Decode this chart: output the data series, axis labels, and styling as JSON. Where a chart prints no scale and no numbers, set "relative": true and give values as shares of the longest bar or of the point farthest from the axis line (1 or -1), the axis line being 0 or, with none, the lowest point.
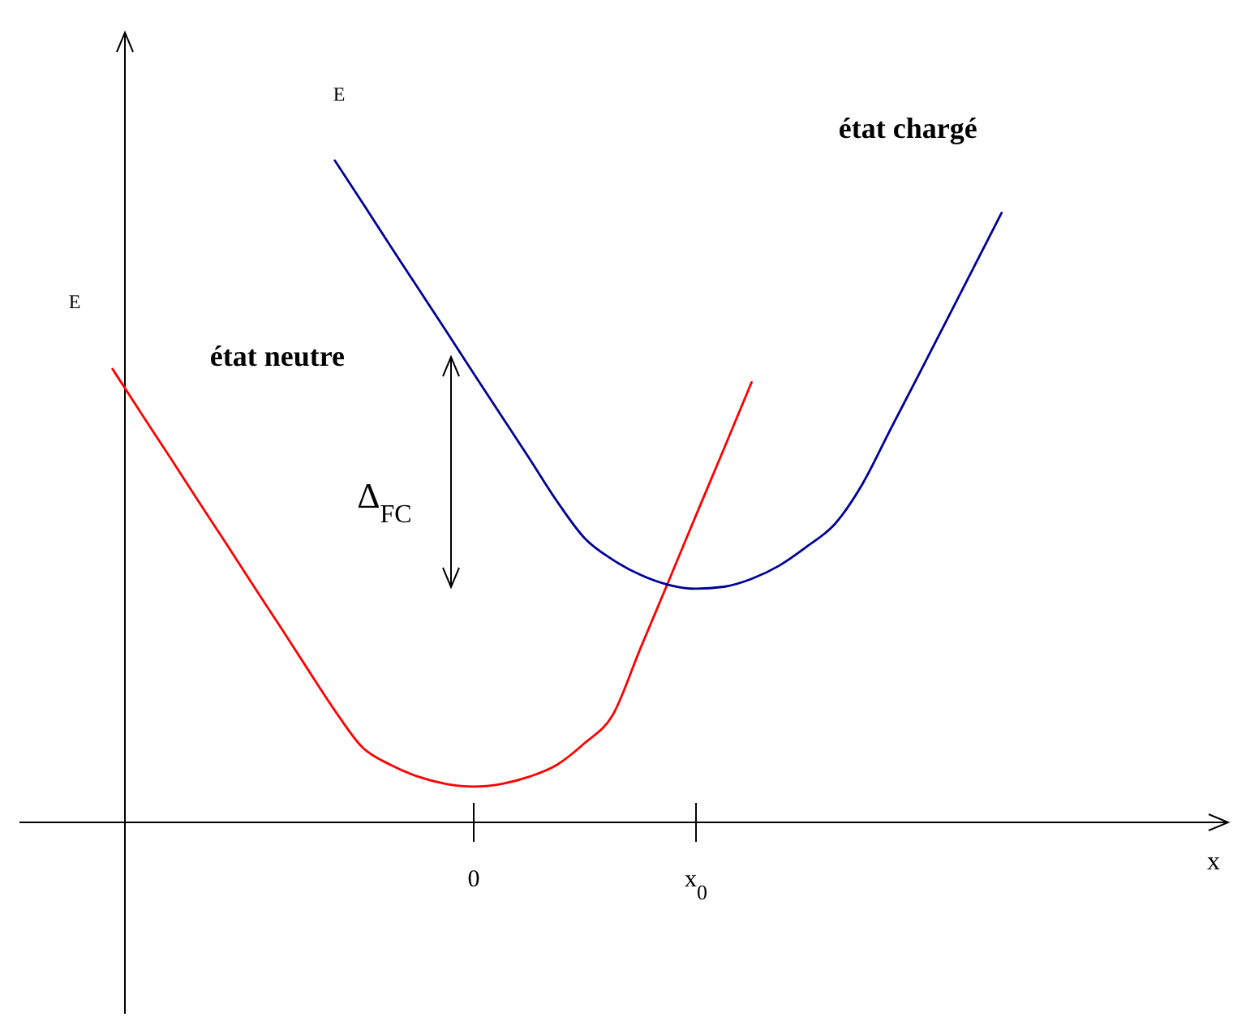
{
  "chart_data": {
    "type": "line",
    "relative": true,
    "xlabel": "x",
    "categories": [
      null,
      null,
      null,
      null,
      null,
      null,
      null,
      null,
      null,
      null,
      null,
      null,
      null,
      null,
      null,
      null,
      "0",
      null,
      null,
      null,
      null,
      null,
      null,
      null,
      "x$_{0}$",
      null,
      null,
      null,
      null,
      null,
      null,
      null,
      null,
      null,
      null,
      null,
      null,
      null,
      null,
      null,
      null,
      null,
      null,
      null
    ],
    "marker": "none",
    "line_style": "solid",
    "annotations": [
      "E",
      "E",
      "Δ$_{FC}$"
    ],
    "series": [
      {
        "name": "état neutre",
        "color": "#ff0000",
        "values": [
          null,
          null,
          null,
          0.685,
          0.62,
          0.556,
          0.491,
          0.427,
          0.362,
          0.298,
          0.233,
          0.169,
          0.113,
          0.087,
          0.069,
          0.058,
          0.054,
          0.058,
          0.069,
          0.087,
          0.12,
          0.162,
          0.263,
          0.363,
          0.464,
          0.564,
          0.665,
          null,
          null,
          null,
          null,
          null,
          null,
          null,
          null,
          null,
          null,
          null,
          null,
          null,
          null,
          null,
          null,
          null
        ]
      },
      {
        "name": "état chargé",
        "color": "#000099",
        "values": [
          null,
          null,
          null,
          null,
          null,
          null,
          null,
          null,
          null,
          null,
          null,
          1,
          0.936,
          0.871,
          0.807,
          0.743,
          0.678,
          0.614,
          0.55,
          0.485,
          0.429,
          0.397,
          0.374,
          0.359,
          0.353,
          0.356,
          0.368,
          0.388,
          0.417,
          0.451,
          0.512,
          0.594,
          0.675,
          0.757,
          0.839,
          0.921,
          null,
          null,
          null,
          null,
          null,
          null,
          null,
          null
        ]
      }
    ]
  }
}
